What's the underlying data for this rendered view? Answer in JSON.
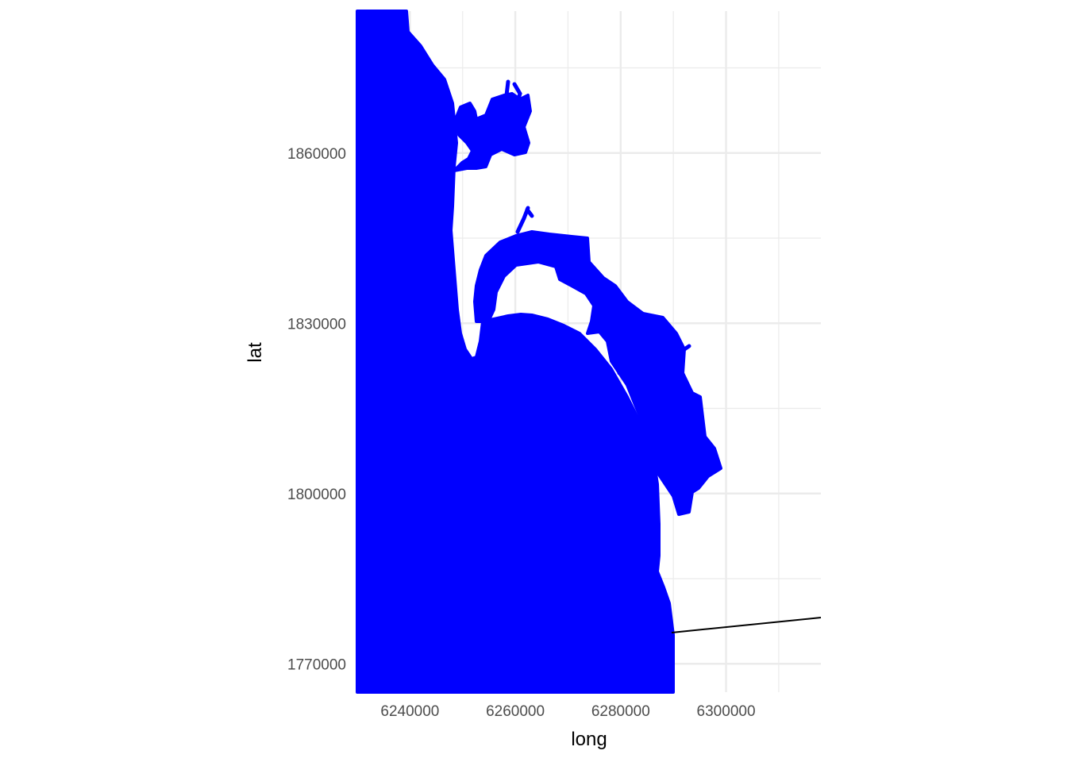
{
  "plot": {
    "x_axis_title": "long",
    "y_axis_title": "lat",
    "x_tick_labels": [
      "6240000",
      "6260000",
      "6280000",
      "6300000"
    ],
    "y_tick_labels": [
      "1860000",
      "1830000",
      "1800000",
      "1770000"
    ],
    "xlim": [
      6230000,
      6318000
    ],
    "ylim": [
      1765000,
      1885000
    ],
    "x_major_breaks": [
      6240000,
      6260000,
      6280000,
      6300000
    ],
    "x_minor_breaks": [
      6250000,
      6270000,
      6290000,
      6310000
    ],
    "y_major_breaks": [
      1770000,
      1800000,
      1830000,
      1860000
    ],
    "y_minor_breaks": [
      1785000,
      1815000,
      1845000,
      1875000
    ],
    "theme": "minimal",
    "grid": true,
    "coastline_fill_color": "#0000FF",
    "boundary_line_color": "#000000",
    "gridline_color": "#EBEBEB",
    "background_color": "#FFFFFF"
  }
}
